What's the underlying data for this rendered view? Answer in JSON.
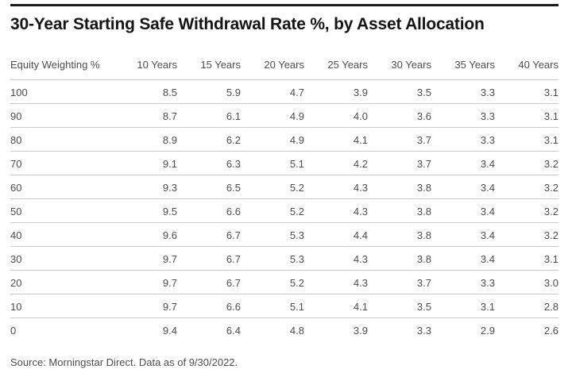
{
  "title": "30-Year Starting Safe Withdrawal Rate %, by Asset Allocation",
  "source": "Source: Morningstar Direct. Data as of 9/30/2022.",
  "colors": {
    "background": "#ffffff",
    "top_rule": "#1a1a1a",
    "title_text": "#151515",
    "body_text": "#4d4d4d",
    "row_rule": "#c9c9c9"
  },
  "chart_data": {
    "type": "table",
    "title": "30-Year Starting Safe Withdrawal Rate %, by Asset Allocation",
    "columns": [
      "Equity Weighting %",
      "10 Years",
      "15 Years",
      "20 Years",
      "25 Years",
      "30 Years",
      "35 Years",
      "40 Years"
    ],
    "rows": [
      {
        "equity_weighting": "100",
        "values": [
          "8.5",
          "5.9",
          "4.7",
          "3.9",
          "3.5",
          "3.3",
          "3.1"
        ]
      },
      {
        "equity_weighting": "90",
        "values": [
          "8.7",
          "6.1",
          "4.9",
          "4.0",
          "3.6",
          "3.3",
          "3.1"
        ]
      },
      {
        "equity_weighting": "80",
        "values": [
          "8.9",
          "6.2",
          "4.9",
          "4.1",
          "3.7",
          "3.3",
          "3.1"
        ]
      },
      {
        "equity_weighting": "70",
        "values": [
          "9.1",
          "6.3",
          "5.1",
          "4.2",
          "3.7",
          "3.4",
          "3.2"
        ]
      },
      {
        "equity_weighting": "60",
        "values": [
          "9.3",
          "6.5",
          "5.2",
          "4.3",
          "3.8",
          "3.4",
          "3.2"
        ]
      },
      {
        "equity_weighting": "50",
        "values": [
          "9.5",
          "6.6",
          "5.2",
          "4.3",
          "3.8",
          "3.4",
          "3.2"
        ]
      },
      {
        "equity_weighting": "40",
        "values": [
          "9.6",
          "6.7",
          "5.3",
          "4.4",
          "3.8",
          "3.4",
          "3.2"
        ]
      },
      {
        "equity_weighting": "30",
        "values": [
          "9.7",
          "6.7",
          "5.3",
          "4.3",
          "3.8",
          "3.4",
          "3.1"
        ]
      },
      {
        "equity_weighting": "20",
        "values": [
          "9.7",
          "6.7",
          "5.2",
          "4.3",
          "3.7",
          "3.3",
          "3.0"
        ]
      },
      {
        "equity_weighting": "10",
        "values": [
          "9.7",
          "6.6",
          "5.1",
          "4.1",
          "3.5",
          "3.1",
          "2.8"
        ]
      },
      {
        "equity_weighting": "0",
        "values": [
          "9.4",
          "6.4",
          "4.8",
          "3.9",
          "3.3",
          "2.9",
          "2.6"
        ]
      }
    ],
    "layout": {
      "first_column_align": "left",
      "value_columns_align": "right",
      "grid": "horizontal-rules-only",
      "units": "percent"
    }
  }
}
